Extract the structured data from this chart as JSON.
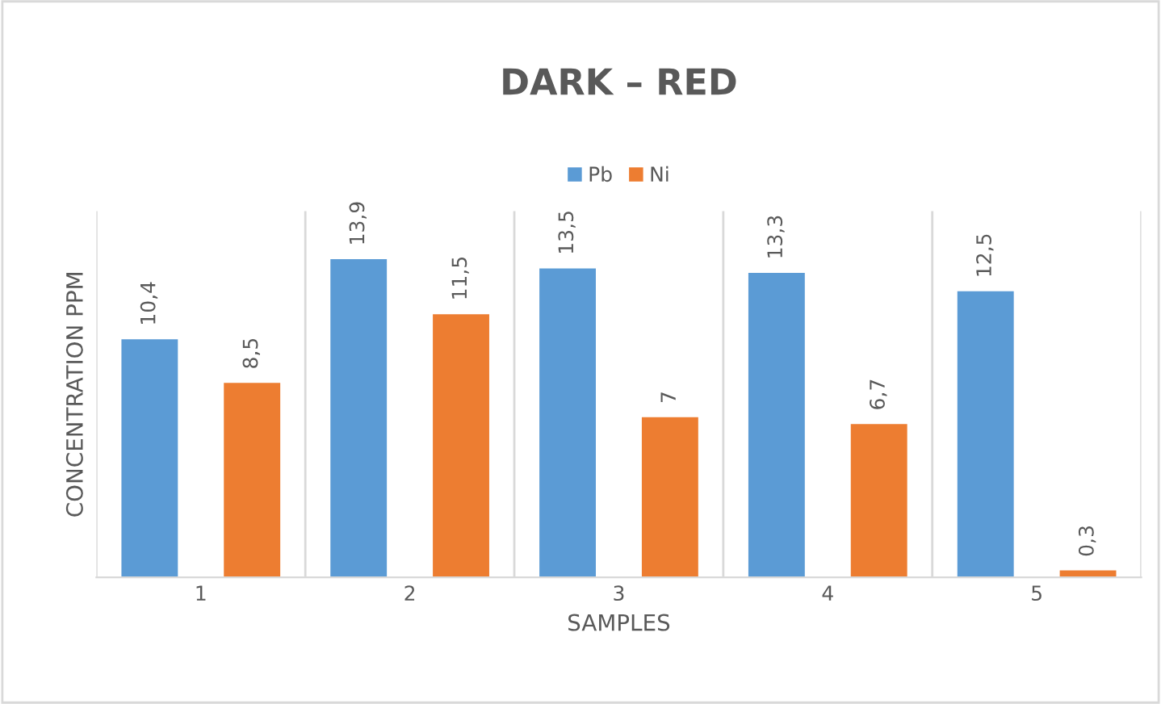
{
  "chart_data": {
    "type": "bar",
    "title": "DARK – RED",
    "xlabel": "SAMPLES",
    "ylabel": "CONCENTRATION PPM",
    "categories": [
      "1",
      "2",
      "3",
      "4",
      "5"
    ],
    "series": [
      {
        "name": "Pb",
        "color": "#5b9bd5",
        "values": [
          10.4,
          13.9,
          13.5,
          13.3,
          12.5
        ],
        "value_labels": [
          "10,4",
          "13,9",
          "13,5",
          "13,3",
          "12,5"
        ]
      },
      {
        "name": "Ni",
        "color": "#ed7d31",
        "values": [
          8.5,
          11.5,
          7,
          6.7,
          0.3
        ],
        "value_labels": [
          "8,5",
          "11,5",
          "7",
          "6,7",
          "0,3"
        ]
      }
    ],
    "ylim": [
      0,
      16
    ],
    "tick_labels": "x",
    "grid": "x",
    "legend": "top"
  }
}
